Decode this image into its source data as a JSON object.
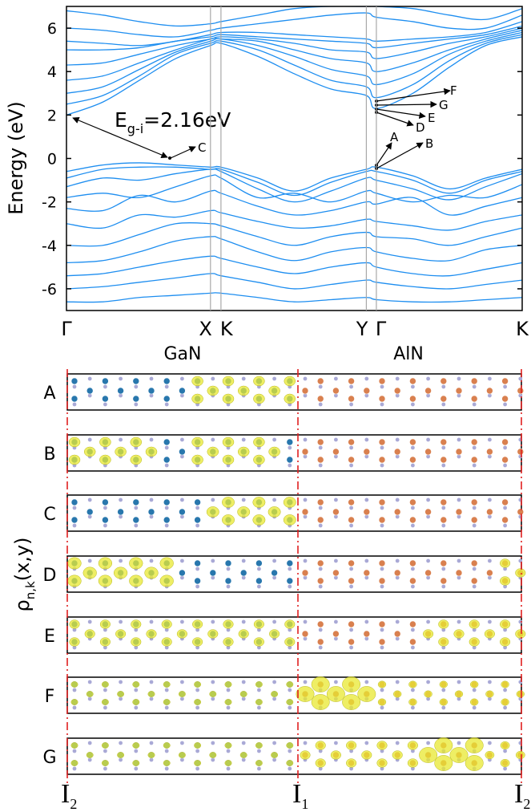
{
  "chart_data": {
    "type": "line",
    "ylabel": "Energy (eV)",
    "x": [
      0,
      0.08,
      0.16,
      0.24,
      0.316,
      0.339,
      0.42,
      0.5,
      0.58,
      0.658,
      0.68,
      0.76,
      0.84,
      0.92,
      1
    ],
    "xlim": [
      0,
      1
    ],
    "xticks": [
      {
        "value": 0,
        "label": "Γ"
      },
      {
        "value": 0.316,
        "label": "X"
      },
      {
        "value": 0.339,
        "label": "K"
      },
      {
        "value": 0.658,
        "label": "Y"
      },
      {
        "value": 0.68,
        "label": "Γ"
      },
      {
        "value": 1,
        "label": "K"
      }
    ],
    "ylim": [
      -7,
      7
    ],
    "yticks": [
      -6,
      -4,
      -2,
      0,
      2,
      4,
      6
    ],
    "series": [
      {
        "color": "#1e8ef0",
        "values": [
          2.0,
          2.6,
          3.6,
          4.6,
          5.2,
          5.3,
          4.7,
          3.9,
          3.2,
          2.9,
          2.3,
          3.0,
          4.2,
          5.2,
          5.6
        ]
      },
      {
        "color": "#1e8ef0",
        "values": [
          2.5,
          2.9,
          3.8,
          4.8,
          5.3,
          5.4,
          5.0,
          4.3,
          3.6,
          3.3,
          2.8,
          3.4,
          4.5,
          5.3,
          5.7
        ]
      },
      {
        "color": "#1e8ef0",
        "values": [
          3.0,
          3.3,
          4.1,
          4.9,
          5.4,
          5.5,
          5.2,
          4.7,
          4.1,
          3.8,
          3.4,
          3.9,
          4.8,
          5.4,
          5.8
        ]
      },
      {
        "color": "#1e8ef0",
        "values": [
          3.6,
          3.8,
          4.4,
          5.0,
          5.5,
          5.5,
          5.4,
          5.0,
          4.6,
          4.4,
          4.0,
          4.4,
          5.0,
          5.5,
          5.9
        ]
      },
      {
        "color": "#1e8ef0",
        "values": [
          4.3,
          4.4,
          4.8,
          5.2,
          5.5,
          5.6,
          5.5,
          5.3,
          5.0,
          4.9,
          4.6,
          4.9,
          5.3,
          5.6,
          6.0
        ]
      },
      {
        "color": "#1e8ef0",
        "values": [
          5.0,
          5.0,
          5.1,
          5.4,
          5.6,
          5.7,
          5.6,
          5.5,
          5.4,
          5.3,
          5.1,
          5.3,
          5.5,
          5.7,
          6.1
        ]
      },
      {
        "color": "#1e8ef0",
        "values": [
          5.4,
          5.3,
          5.2,
          5.4,
          5.7,
          5.8,
          5.8,
          5.7,
          5.6,
          5.5,
          5.4,
          5.5,
          5.6,
          5.8,
          6.3
        ]
      },
      {
        "color": "#1e8ef0",
        "values": [
          6.0,
          5.9,
          5.7,
          5.6,
          5.9,
          6.0,
          6.2,
          6.4,
          6.6,
          6.7,
          6.5,
          6.3,
          6.0,
          6.0,
          6.6
        ]
      },
      {
        "color": "#1e8ef0",
        "values": [
          6.8,
          6.6,
          6.3,
          6.1,
          6.2,
          6.3,
          6.6,
          6.9,
          7.0,
          7.0,
          7.0,
          6.9,
          6.6,
          6.4,
          6.9
        ]
      },
      {
        "color": "#1e8ef0",
        "values": [
          -0.6,
          -0.3,
          -0.2,
          -0.3,
          -0.4,
          -0.4,
          -0.9,
          -1.5,
          -0.9,
          -0.5,
          -0.4,
          -0.8,
          -1.4,
          -0.9,
          -0.5
        ]
      },
      {
        "color": "#1e8ef0",
        "values": [
          -0.9,
          -0.5,
          -0.4,
          -0.4,
          -0.5,
          -0.5,
          -1.1,
          -1.7,
          -1.1,
          -0.6,
          -0.6,
          -1.0,
          -1.6,
          -1.0,
          -0.6
        ]
      },
      {
        "color": "#1e8ef0",
        "values": [
          -1.3,
          -0.9,
          -1.0,
          -0.7,
          -0.5,
          -0.6,
          -1.4,
          -2.0,
          -1.5,
          -0.9,
          -1.0,
          -1.4,
          -1.9,
          -1.3,
          -0.7
        ]
      },
      {
        "color": "#1e8ef0",
        "values": [
          -1.8,
          -1.6,
          -1.8,
          -1.3,
          -0.8,
          -0.9,
          -1.8,
          -1.6,
          -2.0,
          -1.5,
          -1.6,
          -2.0,
          -1.7,
          -1.8,
          -1.2
        ]
      },
      {
        "color": "#1e8ef0",
        "values": [
          -2.3,
          -2.4,
          -1.7,
          -2.0,
          -1.5,
          -1.6,
          -2.2,
          -2.6,
          -2.4,
          -2.0,
          -2.1,
          -1.8,
          -2.6,
          -2.2,
          -1.8
        ]
      },
      {
        "color": "#1e8ef0",
        "values": [
          -3.0,
          -3.2,
          -2.6,
          -2.7,
          -2.4,
          -2.5,
          -2.9,
          -3.2,
          -3.1,
          -2.8,
          -2.9,
          -3.1,
          -3.3,
          -2.9,
          -2.6
        ]
      },
      {
        "color": "#1e8ef0",
        "values": [
          -4.0,
          -4.0,
          -3.5,
          -3.0,
          -3.0,
          -3.1,
          -3.6,
          -4.0,
          -3.6,
          -3.4,
          -3.6,
          -3.7,
          -4.0,
          -3.6,
          -3.2
        ]
      },
      {
        "color": "#1e8ef0",
        "values": [
          -4.8,
          -4.7,
          -4.3,
          -3.8,
          -3.6,
          -3.7,
          -4.3,
          -4.7,
          -4.3,
          -4.1,
          -4.3,
          -4.6,
          -4.7,
          -4.2,
          -4.0
        ]
      },
      {
        "color": "#1e8ef0",
        "values": [
          -5.4,
          -5.3,
          -5.0,
          -4.7,
          -4.5,
          -4.6,
          -5.0,
          -5.3,
          -5.0,
          -4.8,
          -5.0,
          -5.3,
          -5.4,
          -5.1,
          -4.8
        ]
      },
      {
        "color": "#1e8ef0",
        "values": [
          -6.0,
          -5.9,
          -5.7,
          -5.5,
          -5.3,
          -5.4,
          -5.7,
          -6.0,
          -5.8,
          -5.6,
          -5.7,
          -5.9,
          -6.0,
          -5.8,
          -5.6
        ]
      },
      {
        "color": "#1e8ef0",
        "values": [
          -6.6,
          -6.6,
          -6.4,
          -6.3,
          -6.2,
          -6.2,
          -6.4,
          -6.6,
          -6.5,
          -6.4,
          -6.5,
          -6.6,
          -6.6,
          -6.5,
          -6.4
        ]
      }
    ],
    "annotations": {
      "gap": {
        "main": "E",
        "sub": "g-i",
        "rest": "=2.16eV"
      },
      "points": [
        "A",
        "B",
        "C",
        "D",
        "E",
        "F",
        "G"
      ]
    }
  },
  "density_panels": {
    "materials": [
      "GaN",
      "AlN"
    ],
    "rows": [
      "A",
      "B",
      "C",
      "D",
      "E",
      "F",
      "G"
    ],
    "ylabel": {
      "main": "ρ",
      "sub": "n,k",
      "rest": "(x,y)"
    },
    "positions": [
      {
        "main": "I",
        "sub": "2"
      },
      {
        "main": "I",
        "sub": "1"
      },
      {
        "main": "I",
        "sub": "2"
      }
    ]
  }
}
